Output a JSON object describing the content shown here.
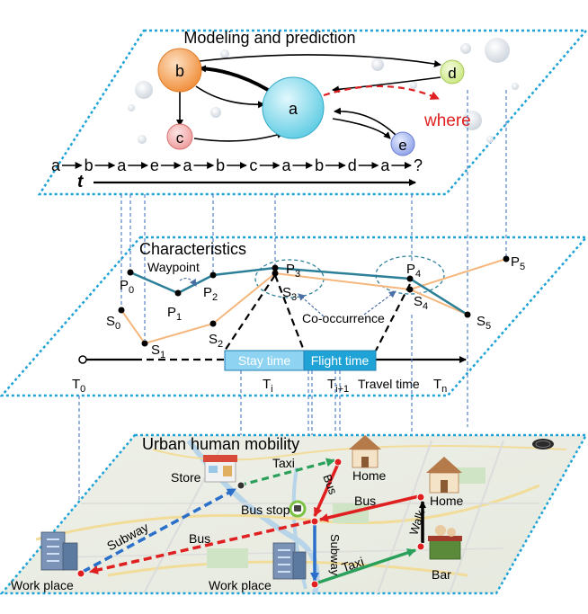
{
  "panels": {
    "top_title": "Modeling and prediction",
    "mid_title": "Characteristics",
    "bottom_title": "Urban human mobility"
  },
  "graph": {
    "nodes": {
      "a": "a",
      "b": "b",
      "c": "c",
      "d": "d",
      "e": "e"
    },
    "where_label": "where",
    "sequence": [
      "a",
      "b",
      "a",
      "e",
      "a",
      "b",
      "c",
      "a",
      "b",
      "d",
      "a",
      "?"
    ],
    "time_label": "t"
  },
  "characteristics": {
    "waypoint_label": "Waypoint",
    "cooccurrence_label": "Co-occurrence",
    "stay_time": "Stay time",
    "flight_time": "Flight time",
    "travel_time": "Travel time",
    "time_ticks": [
      {
        "base": "T",
        "sub": "0"
      },
      {
        "base": "T",
        "sub": "i"
      },
      {
        "base": "T",
        "sub": "i+1"
      },
      {
        "base": "T",
        "sub": "n"
      }
    ],
    "p_points": [
      {
        "base": "P",
        "sub": "0"
      },
      {
        "base": "P",
        "sub": "1"
      },
      {
        "base": "P",
        "sub": "2"
      },
      {
        "base": "P",
        "sub": "3"
      },
      {
        "base": "P",
        "sub": "4"
      },
      {
        "base": "P",
        "sub": "5"
      }
    ],
    "s_points": [
      {
        "base": "S",
        "sub": "0"
      },
      {
        "base": "S",
        "sub": "1"
      },
      {
        "base": "S",
        "sub": "2"
      },
      {
        "base": "S",
        "sub": "3"
      },
      {
        "base": "S",
        "sub": "4"
      },
      {
        "base": "S",
        "sub": "5"
      }
    ]
  },
  "map": {
    "places": {
      "store": "Store",
      "home_top": "Home",
      "home_right": "Home",
      "bus_stop": "Bus stop",
      "work_left": "Work place",
      "work_center": "Work place",
      "bar": "Bar"
    },
    "routes": {
      "taxi_top": "Taxi",
      "subway_left": "Subway",
      "bus_left": "Bus",
      "bus_vertical": "Bus",
      "bus_right": "Bus",
      "subway_vertical": "Subway",
      "taxi_bottom": "Taxi",
      "walk": "Walk"
    }
  },
  "colors": {
    "panel_border": "#1fa3d6",
    "node_a": "#7fd6e8",
    "node_b": "#f5a35a",
    "node_c": "#f3b0b0",
    "node_d": "#d8ef9f",
    "node_e": "#a9b8f0",
    "path_orange": "#f5b77e",
    "path_teal": "#2c7f98",
    "stay_box": "#8fd3f2",
    "flight_box": "#1fa3d6",
    "route_red": "#e02020",
    "route_blue": "#2a6fc9",
    "route_green": "#2aa05a"
  }
}
